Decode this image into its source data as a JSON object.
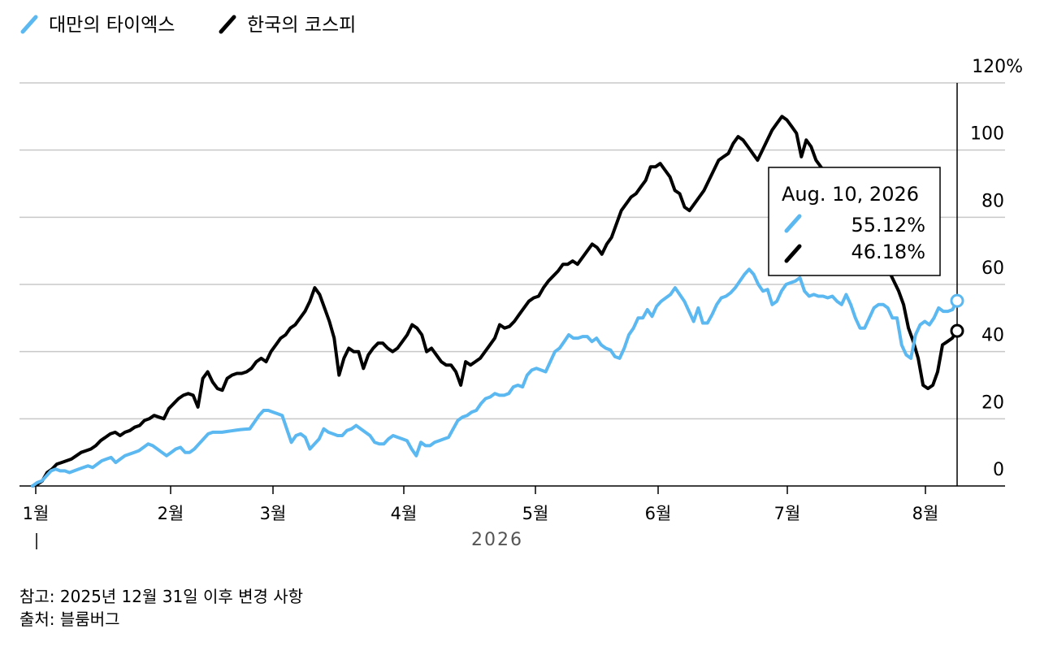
{
  "chart_data": {
    "type": "line",
    "x_unit": "trading day index (2026-01-01 .. 2026-08-10)",
    "series": [
      {
        "name": "대만의 타이엑스",
        "color": "#5bb8f0",
        "values": [
          0,
          1,
          1.5,
          3,
          4.5,
          5,
          4.5,
          4.5,
          4,
          4.5,
          5,
          5.5,
          6,
          5.5,
          6.5,
          7.5,
          8,
          8.5,
          7,
          8,
          9,
          9.5,
          10,
          10.5,
          11.5,
          12.5,
          12,
          11,
          10,
          9,
          10,
          11,
          11.5,
          10,
          10,
          11,
          12.5,
          14,
          15.5,
          16,
          16,
          16,
          16.2,
          16.4,
          16.6,
          16.8,
          16.9,
          17,
          19,
          21,
          22.5,
          22.5,
          22,
          21.5,
          21,
          17,
          13,
          15,
          15.5,
          14.5,
          11,
          12.5,
          14,
          17,
          16,
          15.5,
          15,
          15,
          16.5,
          17,
          18,
          17,
          16,
          15,
          13,
          12.5,
          12.5,
          14,
          15,
          14.5,
          14,
          13.5,
          11,
          9,
          13,
          12,
          12,
          13,
          13.5,
          14,
          14.5,
          17,
          19.5,
          20.5,
          21,
          22,
          22.5,
          24.5,
          26,
          26.5,
          27.5,
          27,
          27,
          27.5,
          29.5,
          30,
          29.5,
          33,
          34.5,
          35,
          34.5,
          34,
          37,
          40,
          41,
          43,
          45,
          44,
          44,
          44.5,
          44.5,
          43,
          44,
          42,
          41,
          40.5,
          38.5,
          38,
          41,
          45,
          47,
          50,
          50,
          52.5,
          50.5,
          53.5,
          55,
          56,
          57,
          59,
          57,
          55,
          52,
          49,
          53,
          48.5,
          48.5,
          51,
          54,
          56,
          56.5,
          57.5,
          59,
          61,
          63,
          64.5,
          63,
          60,
          58,
          58.5,
          54,
          55,
          58,
          60,
          60.5,
          61,
          62,
          58,
          56.5,
          57,
          56.5,
          56.5,
          56,
          56.5,
          55,
          54,
          57,
          54,
          50,
          47,
          47,
          50,
          53,
          54,
          54,
          53,
          50,
          50,
          42,
          39,
          38,
          45,
          48,
          49,
          48,
          50,
          53,
          52,
          52,
          52.5,
          55.12
        ]
      },
      {
        "name": "한국의 코스피",
        "color": "#000000",
        "values": [
          0,
          0.5,
          1.5,
          4,
          5,
          6.5,
          7,
          7.5,
          8,
          9,
          10,
          10.5,
          11,
          12,
          13.5,
          14.5,
          15.5,
          16,
          15,
          16,
          16.5,
          17.5,
          18,
          19.5,
          20,
          21,
          20.5,
          20,
          23,
          24.5,
          26,
          27,
          27.5,
          27,
          23.5,
          32,
          34,
          31,
          29,
          28.5,
          32,
          33,
          33.5,
          33.5,
          34,
          35,
          37,
          38,
          37,
          40,
          42,
          44,
          45,
          47,
          48,
          50,
          52,
          55,
          59,
          57,
          53,
          49,
          44,
          33,
          38,
          41,
          40,
          40,
          35,
          39,
          41,
          42.5,
          42.5,
          41,
          40,
          41,
          43,
          45,
          48,
          47,
          45,
          40,
          41,
          39,
          37,
          36,
          36,
          34,
          30,
          37,
          36,
          37,
          38,
          40,
          42,
          44,
          48,
          47,
          47.5,
          49,
          51,
          53,
          55,
          56,
          56.5,
          59,
          61,
          62.5,
          64,
          66,
          66,
          67,
          66,
          68,
          70,
          72,
          71,
          69,
          72,
          74,
          78,
          82,
          84,
          86,
          87,
          89,
          91,
          95,
          95,
          96,
          94,
          92,
          88,
          87,
          83,
          82,
          84,
          86,
          88,
          91,
          94,
          97,
          98,
          99,
          102,
          104,
          103,
          101,
          99,
          97,
          100,
          103,
          106,
          108,
          110,
          109,
          107,
          105,
          98,
          103,
          101,
          97,
          95,
          93,
          92,
          89,
          87,
          85,
          82,
          80,
          78,
          77,
          75,
          73,
          70,
          67,
          64,
          61,
          58,
          54,
          47,
          43,
          38,
          30,
          29,
          30,
          34,
          42,
          43,
          44,
          46.18
        ]
      }
    ],
    "y_ticks": [
      "0",
      "20",
      "40",
      "60",
      "80",
      "100",
      "120%"
    ],
    "x_ticks": [
      "1월",
      "2월",
      "3월",
      "4월",
      "5월",
      "6월",
      "7월",
      "8월"
    ],
    "year_label": "2026",
    "ylim": [
      0,
      120
    ],
    "legend_placement": "top-left",
    "grid": true,
    "tooltip": {
      "date": "Aug. 10, 2026",
      "items": [
        {
          "value": "55.12%",
          "color": "#5bb8f0"
        },
        {
          "value": "46.18%",
          "color": "#000000"
        }
      ]
    }
  },
  "legend": {
    "items": [
      {
        "label": "대만의 타이엑스",
        "color": "#5bb8f0"
      },
      {
        "label": "한국의 코스피",
        "color": "#000000"
      }
    ]
  },
  "footer": {
    "note": "참고: 2025년 12월 31일 이후 변경 사항",
    "source": "출처: 블룸버그"
  }
}
